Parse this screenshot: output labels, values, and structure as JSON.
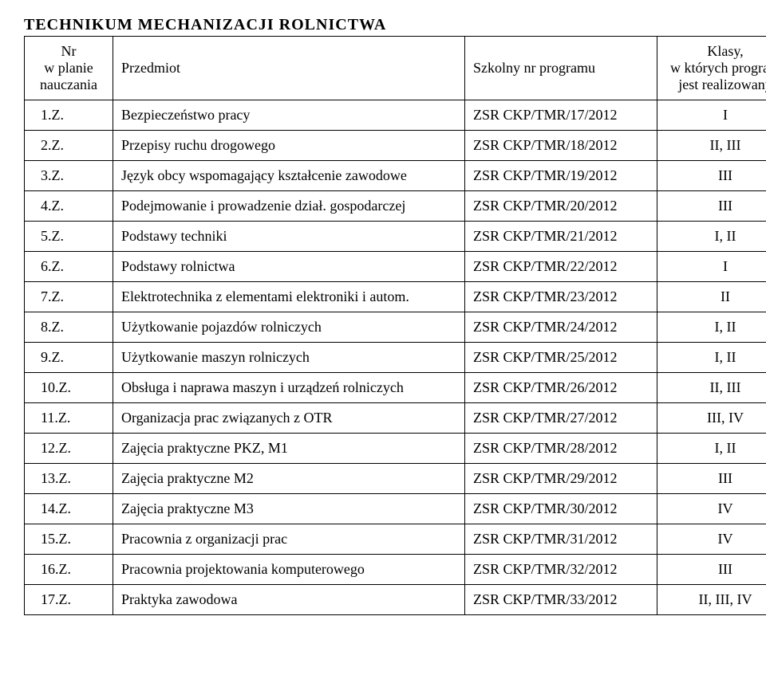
{
  "title": "TECHNIKUM  MECHANIZACJI  ROLNICTWA",
  "headers": {
    "nr": "Nr\nw planie\nnauczania",
    "subject": "Przedmiot",
    "program": "Szkolny nr programu",
    "classes": "Klasy,\nw  których program\njest  realizowany"
  },
  "rows": [
    {
      "nr": "1.Z.",
      "subject": "Bezpieczeństwo pracy",
      "program": "ZSR CKP/TMR/17/2012",
      "classes": "I"
    },
    {
      "nr": "2.Z.",
      "subject": "Przepisy ruchu drogowego",
      "program": "ZSR CKP/TMR/18/2012",
      "classes": "II, III"
    },
    {
      "nr": "3.Z.",
      "subject": "Język obcy wspomagający kształcenie  zawodowe",
      "program": "ZSR CKP/TMR/19/2012",
      "classes": "III"
    },
    {
      "nr": "4.Z.",
      "subject": "Podejmowanie i prowadzenie dział. gospodarczej",
      "program": "ZSR CKP/TMR/20/2012",
      "classes": "III"
    },
    {
      "nr": "5.Z.",
      "subject": "Podstawy techniki",
      "program": "ZSR CKP/TMR/21/2012",
      "classes": "I, II"
    },
    {
      "nr": "6.Z.",
      "subject": "Podstawy rolnictwa",
      "program": "ZSR CKP/TMR/22/2012",
      "classes": "I"
    },
    {
      "nr": "7.Z.",
      "subject": "Elektrotechnika z elementami elektroniki i autom.",
      "program": "ZSR CKP/TMR/23/2012",
      "classes": "II"
    },
    {
      "nr": "8.Z.",
      "subject": "Użytkowanie pojazdów rolniczych",
      "program": "ZSR CKP/TMR/24/2012",
      "classes": "I, II"
    },
    {
      "nr": "9.Z.",
      "subject": "Użytkowanie maszyn rolniczych",
      "program": "ZSR CKP/TMR/25/2012",
      "classes": "I, II"
    },
    {
      "nr": "10.Z.",
      "subject": "Obsługa i naprawa maszyn i urządzeń rolniczych",
      "program": "ZSR CKP/TMR/26/2012",
      "classes": "II, III"
    },
    {
      "nr": "11.Z.",
      "subject": "Organizacja prac związanych z OTR",
      "program": "ZSR CKP/TMR/27/2012",
      "classes": "III, IV"
    },
    {
      "nr": "12.Z.",
      "subject": "Zajęcia praktyczne PKZ, M1",
      "program": "ZSR CKP/TMR/28/2012",
      "classes": "I, II"
    },
    {
      "nr": "13.Z.",
      "subject": "Zajęcia praktyczne M2",
      "program": "ZSR CKP/TMR/29/2012",
      "classes": "III"
    },
    {
      "nr": "14.Z.",
      "subject": "Zajęcia praktyczne M3",
      "program": "ZSR CKP/TMR/30/2012",
      "classes": "IV"
    },
    {
      "nr": "15.Z.",
      "subject": "Pracownia z organizacji  prac",
      "program": "ZSR CKP/TMR/31/2012",
      "classes": "IV"
    },
    {
      "nr": "16.Z.",
      "subject": "Pracownia projektowania komputerowego",
      "program": "ZSR CKP/TMR/32/2012",
      "classes": "III"
    },
    {
      "nr": "17.Z.",
      "subject": "Praktyka zawodowa",
      "program": "ZSR CKP/TMR/33/2012",
      "classes": "II, III, IV"
    }
  ]
}
